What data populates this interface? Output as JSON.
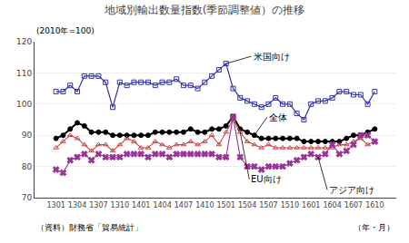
{
  "chart_data": {
    "type": "line",
    "title": "地域別輸出数量指数(季節調整値）の推移",
    "subtitle": "(2010年=100)",
    "xlabel": "（年・月）",
    "annotations": [
      "米国向け",
      "全体",
      "EU向け",
      "アジア向け",
      "（資料）財務省「貿易統計」"
    ],
    "categories": [
      "1301",
      null,
      null,
      "1304",
      null,
      null,
      "1307",
      null,
      null,
      "1310",
      null,
      null,
      "1401",
      null,
      null,
      "1404",
      null,
      null,
      "1407",
      null,
      null,
      "1410",
      null,
      null,
      "1501",
      null,
      null,
      "1504",
      null,
      null,
      "1507",
      null,
      null,
      "1510",
      null,
      null,
      "1601",
      null,
      null,
      "1604",
      null,
      null,
      "1607",
      null,
      null,
      "1610"
    ],
    "series": [
      {
        "name": "米国向け",
        "color": "#3333aa",
        "marker": "square-open",
        "values": [
          104,
          104,
          106,
          104,
          109,
          109,
          109,
          107,
          99,
          107,
          106,
          107,
          107,
          107,
          106,
          107,
          107,
          108,
          106,
          106,
          105,
          107,
          109,
          111,
          113,
          105,
          102,
          101,
          100,
          99,
          100,
          102,
          100,
          100,
          97,
          95,
          100,
          101,
          101,
          102,
          104,
          104,
          103,
          103,
          100,
          104
        ]
      },
      {
        "name": "全体",
        "color": "#000000",
        "marker": "circle",
        "values": [
          89,
          90,
          92,
          94,
          93,
          91,
          91,
          91,
          90,
          90,
          90,
          90,
          90,
          90,
          91,
          91,
          91,
          91,
          91,
          92,
          91,
          91,
          92,
          92,
          93,
          96,
          92,
          91,
          90,
          89,
          89,
          89,
          89,
          89,
          89,
          88,
          88,
          88,
          88,
          88,
          88,
          89,
          90,
          90,
          91,
          92
        ]
      },
      {
        "name": "EU向け",
        "color": "#cc4444",
        "marker": "triangle-up-open",
        "values": [
          86,
          88,
          90,
          89,
          87,
          85,
          87,
          87,
          85,
          87,
          89,
          88,
          86,
          86,
          88,
          87,
          86,
          87,
          87,
          88,
          87,
          88,
          90,
          87,
          91,
          95,
          91,
          88,
          87,
          86,
          87,
          86,
          86,
          86,
          86,
          86,
          86,
          86,
          86,
          86,
          87,
          87,
          88,
          89,
          87,
          88
        ]
      },
      {
        "name": "アジア向け",
        "color": "#993399",
        "marker": "x",
        "values": [
          79,
          78,
          82,
          83,
          84,
          82,
          84,
          83,
          83,
          83,
          84,
          84,
          84,
          83,
          84,
          84,
          83,
          84,
          84,
          84,
          84,
          84,
          84,
          83,
          83,
          96,
          83,
          80,
          80,
          79,
          80,
          80,
          80,
          81,
          82,
          83,
          84,
          83,
          84,
          87,
          84,
          85,
          87,
          90,
          90,
          88
        ]
      }
    ],
    "ylim": [
      70,
      120
    ],
    "yticks": [
      70,
      80,
      90,
      100,
      110,
      120
    ],
    "grid": true
  }
}
